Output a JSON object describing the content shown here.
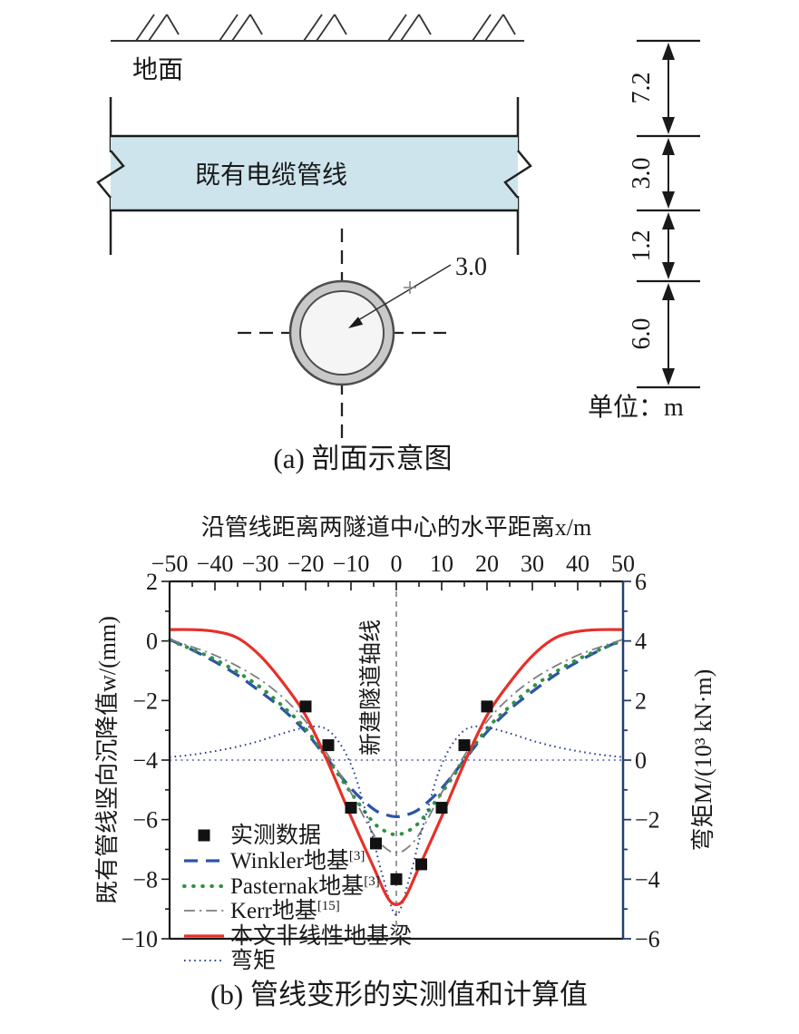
{
  "figure": {
    "panel_a": {
      "caption": "(a) 剖面示意图",
      "ground_label": "地面",
      "pipeline_label": "既有电缆管线",
      "radius_label": "3.0",
      "unit_label": "单位：m",
      "dims": [
        "7.2",
        "3.0",
        "1.2",
        "6.0"
      ]
    },
    "panel_b": {
      "caption": "(b) 管线变形的实测值和计算值",
      "chart_data": {
        "type": "line",
        "top_axis": {
          "title": "沿管线距离两隧道中心的水平距离x/m",
          "ticks": [
            -50,
            -40,
            -30,
            -20,
            -10,
            0,
            10,
            20,
            30,
            40,
            50
          ],
          "minor_step": 5,
          "range": [
            -50,
            50
          ]
        },
        "left_axis": {
          "title": "既有管线竖向沉降值w/(mm)",
          "ticks": [
            2,
            0,
            -2,
            -4,
            -6,
            -8,
            -10
          ],
          "minor_step": 1,
          "range": [
            2,
            -10
          ]
        },
        "right_axis": {
          "title": "弯矩M/(10³ kN·m)",
          "ticks": [
            6,
            4,
            2,
            0,
            -2,
            -4,
            -6
          ],
          "minor_step": 1,
          "range": [
            6,
            -6
          ]
        },
        "annotation": "新建隧道轴线",
        "grid": false,
        "legend_position": "lower-left",
        "measured": {
          "label": "实测数据",
          "color": "#111111",
          "points": [
            [
              -20,
              -2.2
            ],
            [
              -15,
              -3.5
            ],
            [
              -10,
              -5.6
            ],
            [
              -4.5,
              -6.8
            ],
            [
              0,
              -8.0
            ],
            [
              5.5,
              -7.5
            ],
            [
              10,
              -5.6
            ],
            [
              15,
              -3.5
            ],
            [
              20,
              -2.2
            ]
          ]
        },
        "series": [
          {
            "name": "Winkler地基",
            "ref": "[3]",
            "axis": "left",
            "style": "dashed",
            "color": "#2b55a7",
            "x": [
              -50,
              -45,
              -40,
              -35,
              -30,
              -25,
              -20,
              -15,
              -10,
              -5,
              -2,
              0,
              2,
              5,
              10,
              15,
              20,
              25,
              30,
              35,
              40,
              45,
              50
            ],
            "y": [
              0.05,
              -0.3,
              -0.7,
              -1.15,
              -1.7,
              -2.3,
              -3.05,
              -4.0,
              -4.95,
              -5.65,
              -5.85,
              -5.9,
              -5.85,
              -5.65,
              -4.95,
              -4.0,
              -3.05,
              -2.3,
              -1.7,
              -1.15,
              -0.7,
              -0.3,
              0.05
            ]
          },
          {
            "name": "Pasternak地基",
            "ref": "[3]",
            "axis": "left",
            "style": "dotted",
            "color": "#2f9242",
            "x": [
              -50,
              -45,
              -40,
              -35,
              -30,
              -25,
              -20,
              -15,
              -10,
              -5,
              -2,
              0,
              2,
              5,
              10,
              15,
              20,
              25,
              30,
              35,
              40,
              45,
              50
            ],
            "y": [
              0.02,
              -0.28,
              -0.62,
              -1.05,
              -1.55,
              -2.2,
              -2.95,
              -4.0,
              -5.1,
              -6.1,
              -6.42,
              -6.5,
              -6.42,
              -6.1,
              -5.1,
              -4.0,
              -2.95,
              -2.2,
              -1.55,
              -1.05,
              -0.62,
              -0.28,
              0.02
            ]
          },
          {
            "name": "Kerr地基",
            "ref": "[15]",
            "axis": "left",
            "style": "dashdot",
            "color": "#7f7f7f",
            "x": [
              -50,
              -45,
              -40,
              -35,
              -30,
              -25,
              -20,
              -15,
              -10,
              -5,
              -2,
              0,
              2,
              5,
              10,
              15,
              20,
              25,
              30,
              35,
              40,
              45,
              50
            ],
            "y": [
              0.05,
              -0.2,
              -0.48,
              -0.85,
              -1.3,
              -1.9,
              -2.7,
              -3.85,
              -5.1,
              -6.5,
              -7.0,
              -7.1,
              -7.0,
              -6.5,
              -5.1,
              -3.85,
              -2.7,
              -1.9,
              -1.3,
              -0.85,
              -0.48,
              -0.2,
              0.05
            ]
          },
          {
            "name": "本文非线性地基梁",
            "ref": "",
            "axis": "left",
            "style": "solid",
            "color": "#e63029",
            "x": [
              -50,
              -45,
              -40,
              -35,
              -30,
              -25,
              -20,
              -15,
              -10,
              -5,
              -2,
              0,
              2,
              5,
              10,
              15,
              20,
              25,
              30,
              35,
              40,
              45,
              50
            ],
            "y": [
              0.38,
              0.38,
              0.32,
              0.1,
              -0.5,
              -1.4,
              -2.5,
              -4.1,
              -5.9,
              -7.6,
              -8.6,
              -8.85,
              -8.6,
              -7.6,
              -5.9,
              -4.1,
              -2.5,
              -1.4,
              -0.5,
              0.1,
              0.32,
              0.38,
              0.38
            ]
          },
          {
            "name": "弯矩",
            "ref": "",
            "axis": "right",
            "style": "fine-dotted",
            "color": "#2c3f92",
            "x": [
              -50,
              -45,
              -40,
              -35,
              -30,
              -25,
              -20,
              -17,
              -15,
              -13,
              -11,
              -9,
              -7,
              -5,
              -3,
              0,
              3,
              5,
              7,
              9,
              11,
              13,
              15,
              17,
              20,
              25,
              30,
              35,
              40,
              45,
              50
            ],
            "y": [
              0.1,
              0.18,
              0.3,
              0.45,
              0.65,
              0.9,
              1.1,
              1.12,
              1.0,
              0.68,
              0.18,
              -0.55,
              -1.6,
              -2.7,
              -3.9,
              -5.2,
              -3.9,
              -2.7,
              -1.6,
              -0.55,
              0.18,
              0.68,
              1.0,
              1.12,
              1.1,
              0.9,
              0.65,
              0.45,
              0.3,
              0.18,
              0.1
            ]
          }
        ],
        "reference_lines": {
          "vertical_x": 0,
          "horizontal_right_value": 0
        }
      }
    }
  },
  "colors": {
    "pipe_band_fill": "#cde4ec",
    "right_spine": "#23406f",
    "line_black": "#1a1a1a",
    "circle_ring_fill": "#c9c9c9",
    "circle_inner_fill": "#f5f5f5"
  }
}
